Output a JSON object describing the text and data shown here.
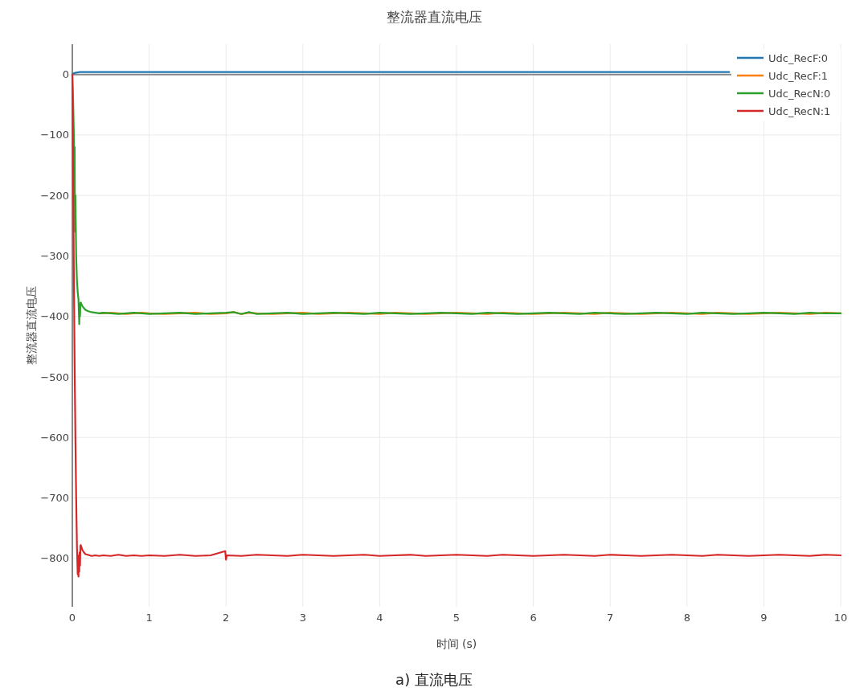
{
  "chart_data": {
    "type": "line",
    "title": "整流器直流电压",
    "xlabel": "时间 (s)",
    "ylabel": "整流器直流电压",
    "annotations": [
      "a) 直流电压"
    ],
    "xlim": [
      0,
      10
    ],
    "xticks": [
      0,
      1,
      2,
      3,
      4,
      5,
      6,
      7,
      8,
      9,
      10
    ],
    "ylim": [
      -880,
      50
    ],
    "yticks": [
      0,
      {
        "value": -100,
        "label": "−100"
      },
      {
        "value": -200,
        "label": "−200"
      },
      {
        "value": -300,
        "label": "−300"
      },
      {
        "value": -400,
        "label": "−400"
      },
      {
        "value": -500,
        "label": "−500"
      },
      {
        "value": -600,
        "label": "−600"
      },
      {
        "value": -700,
        "label": "−700"
      },
      {
        "value": -800,
        "label": "−800"
      }
    ],
    "grid": true,
    "legend": "top right",
    "ref_lines": [
      {
        "axis": "y",
        "value": 0,
        "color": "#888888"
      }
    ],
    "series": [
      {
        "name": "Udc_RecF:0",
        "color": "#1f77b4",
        "x": [
          0,
          0.02,
          0.05,
          0.1,
          0.2,
          0.5,
          1,
          2,
          3,
          4,
          5,
          6,
          7,
          8,
          8.55
        ],
        "values": [
          0,
          2,
          3,
          4,
          4,
          4,
          4,
          4,
          4,
          4,
          4,
          4,
          4,
          4,
          4
        ]
      },
      {
        "name": "Udc_RecF:1",
        "color": "#ff7f0e",
        "x": [
          0.35,
          0.4,
          0.5,
          0.6,
          0.7,
          0.8,
          0.9,
          1,
          1.2,
          1.4,
          1.6,
          1.8,
          2,
          2.1,
          2.2,
          2.3,
          2.4,
          2.6,
          2.8,
          3,
          3.2,
          3.4,
          3.6,
          3.8,
          4,
          4.2,
          4.4,
          4.6,
          4.8,
          5,
          5.2,
          5.4,
          5.6,
          5.8,
          6,
          6.2,
          6.4,
          6.6,
          6.8,
          7,
          7.2,
          7.4,
          7.6,
          7.8,
          8,
          8.2,
          8.4,
          8.6,
          8.8,
          9,
          9.2,
          9.4,
          9.6,
          9.8,
          10
        ],
        "values": [
          -395,
          -395,
          -394,
          -395,
          -396,
          -395,
          -394,
          -395,
          -396,
          -395,
          -394,
          -396,
          -395,
          -393,
          -396,
          -394,
          -395,
          -396,
          -395,
          -394,
          -396,
          -395,
          -394,
          -395,
          -396,
          -394,
          -395,
          -396,
          -395,
          -394,
          -395,
          -396,
          -394,
          -395,
          -396,
          -395,
          -394,
          -395,
          -396,
          -394,
          -395,
          -396,
          -395,
          -394,
          -395,
          -396,
          -394,
          -395,
          -396,
          -395,
          -394,
          -395,
          -396,
          -394,
          -395
        ]
      },
      {
        "name": "Udc_RecN:0",
        "color": "#2ca02c",
        "x": [
          0,
          0.01,
          0.02,
          0.025,
          0.03,
          0.035,
          0.04,
          0.05,
          0.06,
          0.07,
          0.08,
          0.09,
          0.095,
          0.1,
          0.105,
          0.11,
          0.12,
          0.13,
          0.15,
          0.17,
          0.2,
          0.25,
          0.3,
          0.35,
          0.4,
          0.5,
          0.6,
          0.7,
          0.8,
          0.9,
          1,
          1.2,
          1.4,
          1.6,
          1.8,
          2,
          2.1,
          2.2,
          2.3,
          2.4,
          2.6,
          2.8,
          3,
          3.2,
          3.4,
          3.6,
          3.8,
          4,
          4.2,
          4.4,
          4.6,
          4.8,
          5,
          5.2,
          5.4,
          5.6,
          5.8,
          6,
          6.2,
          6.4,
          6.6,
          6.8,
          7,
          7.2,
          7.4,
          7.6,
          7.8,
          8,
          8.2,
          8.4,
          8.6,
          8.8,
          9,
          9.2,
          9.4,
          9.6,
          9.8,
          10
        ],
        "values": [
          0,
          -40,
          -100,
          -160,
          -120,
          -260,
          -200,
          -300,
          -340,
          -360,
          -372,
          -413,
          -385,
          -400,
          -378,
          -377,
          -380,
          -383,
          -386,
          -389,
          -391,
          -393,
          -394,
          -395,
          -394,
          -395,
          -396,
          -395,
          -394,
          -395,
          -396,
          -395,
          -394,
          -396,
          -395,
          -394,
          -393,
          -396,
          -393,
          -396,
          -395,
          -394,
          -396,
          -395,
          -394,
          -395,
          -396,
          -394,
          -395,
          -396,
          -395,
          -394,
          -395,
          -396,
          -394,
          -395,
          -396,
          -395,
          -394,
          -395,
          -396,
          -394,
          -395,
          -396,
          -395,
          -394,
          -395,
          -396,
          -394,
          -395,
          -396,
          -395,
          -394,
          -395,
          -396,
          -394,
          -395,
          -395
        ]
      },
      {
        "name": "Udc_RecN:1",
        "color": "#d62728",
        "x": [
          0,
          0.01,
          0.02,
          0.03,
          0.04,
          0.05,
          0.06,
          0.07,
          0.075,
          0.08,
          0.085,
          0.09,
          0.095,
          0.1,
          0.105,
          0.11,
          0.12,
          0.13,
          0.15,
          0.17,
          0.2,
          0.25,
          0.3,
          0.35,
          0.4,
          0.5,
          0.6,
          0.7,
          0.8,
          0.9,
          1,
          1.2,
          1.4,
          1.6,
          1.8,
          1.99,
          2,
          2.01,
          2.2,
          2.4,
          2.6,
          2.8,
          3,
          3.2,
          3.4,
          3.6,
          3.8,
          4,
          4.2,
          4.4,
          4.6,
          4.8,
          5,
          5.2,
          5.4,
          5.6,
          5.8,
          6,
          6.2,
          6.4,
          6.6,
          6.8,
          7,
          7.2,
          7.4,
          7.6,
          7.8,
          8,
          8.2,
          8.4,
          8.6,
          8.8,
          9,
          9.2,
          9.4,
          9.6,
          9.8,
          10
        ],
        "values": [
          0,
          -160,
          -330,
          -480,
          -600,
          -700,
          -780,
          -826,
          -800,
          -830,
          -795,
          -822,
          -790,
          -812,
          -780,
          -778,
          -782,
          -786,
          -790,
          -793,
          -794,
          -796,
          -795,
          -796,
          -795,
          -796,
          -794,
          -796,
          -795,
          -796,
          -795,
          -796,
          -794,
          -796,
          -795,
          -788,
          -802,
          -795,
          -796,
          -794,
          -795,
          -796,
          -794,
          -795,
          -796,
          -795,
          -794,
          -796,
          -795,
          -794,
          -796,
          -795,
          -794,
          -795,
          -796,
          -794,
          -795,
          -796,
          -795,
          -794,
          -795,
          -796,
          -794,
          -795,
          -796,
          -795,
          -794,
          -795,
          -796,
          -794,
          -795,
          -796,
          -795,
          -794,
          -795,
          -796,
          -794,
          -795
        ]
      }
    ]
  }
}
